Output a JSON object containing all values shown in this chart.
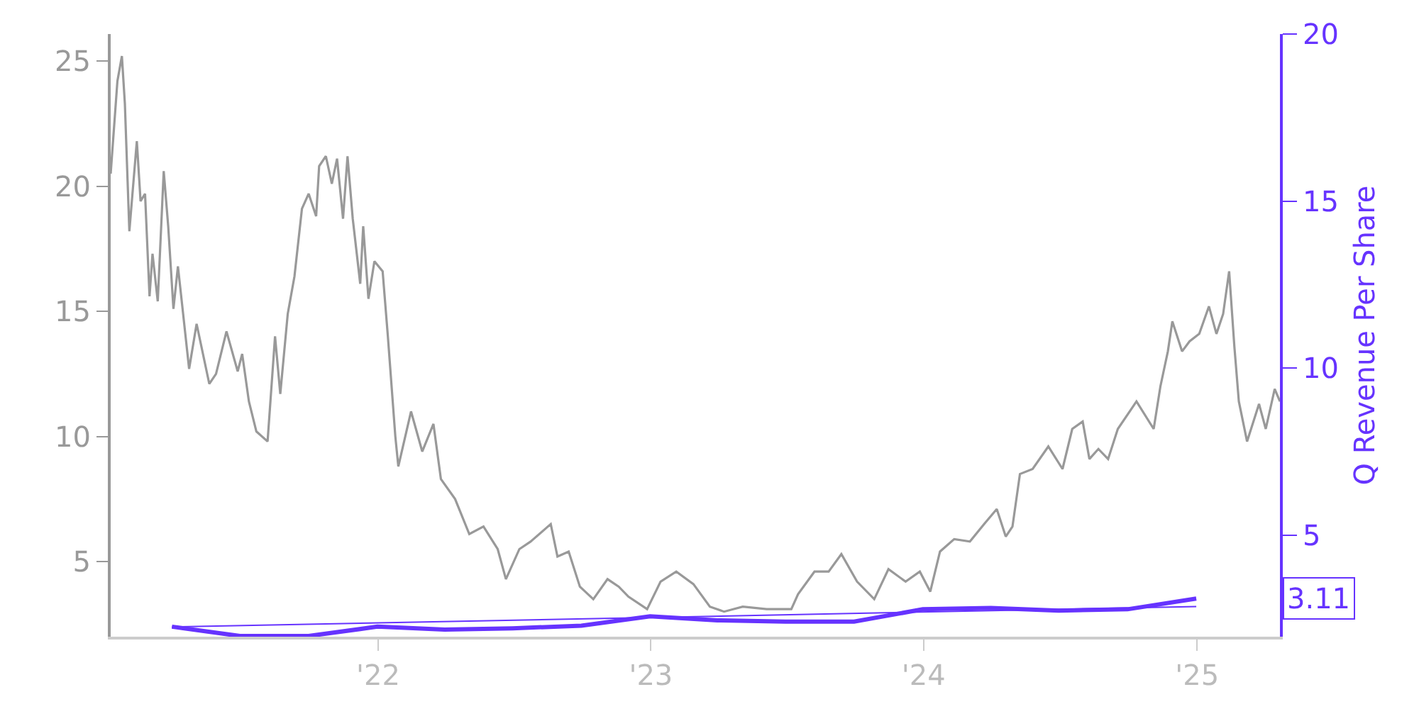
{
  "chart_data": {
    "type": "line",
    "y2label": "Q Revenue Per Share",
    "xlim": [
      "2021-01-08",
      "2025-04-22"
    ],
    "xticks": [
      {
        "value": "2022-01-01",
        "label": "'22"
      },
      {
        "value": "2023-01-01",
        "label": "'23"
      },
      {
        "value": "2024-01-01",
        "label": "'24"
      },
      {
        "value": "2025-01-01",
        "label": "'25"
      }
    ],
    "ylim": [
      2,
      26.08
    ],
    "yticks": [
      5,
      10,
      15,
      20,
      25
    ],
    "y2lim": [
      1.97,
      20
    ],
    "y2ticks": [
      5,
      10,
      15,
      20
    ],
    "marker": "none",
    "annotations": [
      "3.11"
    ],
    "series": [
      {
        "color": "#999999",
        "x": [
          "2021-01-08",
          "2021-01-17",
          "2021-01-23",
          "2021-01-27",
          "2021-02-02",
          "2021-02-12",
          "2021-02-17",
          "2021-02-23",
          "2021-03-01",
          "2021-03-05",
          "2021-03-12",
          "2021-03-20",
          "2021-03-26",
          "2021-04-02",
          "2021-04-08",
          "2021-04-23",
          "2021-05-03",
          "2021-05-20",
          "2021-05-29",
          "2021-06-12",
          "2021-06-27",
          "2021-07-03",
          "2021-07-12",
          "2021-07-22",
          "2021-08-06",
          "2021-08-16",
          "2021-08-23",
          "2021-09-02",
          "2021-09-11",
          "2021-09-21",
          "2021-09-30",
          "2021-10-10",
          "2021-10-14",
          "2021-10-23",
          "2021-10-31",
          "2021-11-07",
          "2021-11-15",
          "2021-11-21",
          "2021-11-28",
          "2021-12-08",
          "2021-12-12",
          "2021-12-19",
          "2021-12-27",
          "2022-01-07",
          "2022-01-14",
          "2022-01-24",
          "2022-01-28",
          "2022-02-14",
          "2022-03-01",
          "2022-03-16",
          "2022-03-26",
          "2022-04-14",
          "2022-05-03",
          "2022-05-22",
          "2022-06-10",
          "2022-06-21",
          "2022-07-09",
          "2022-07-24",
          "2022-08-20",
          "2022-08-29",
          "2022-09-13",
          "2022-09-28",
          "2022-10-16",
          "2022-11-04",
          "2022-11-19",
          "2022-12-02",
          "2022-12-27",
          "2023-01-14",
          "2023-02-04",
          "2023-02-27",
          "2023-03-21",
          "2023-04-09",
          "2023-05-04",
          "2023-06-05",
          "2023-07-08",
          "2023-07-17",
          "2023-08-08",
          "2023-08-27",
          "2023-09-13",
          "2023-10-04",
          "2023-10-27",
          "2023-11-15",
          "2023-12-08",
          "2023-12-27",
          "2024-01-10",
          "2024-01-23",
          "2024-02-11",
          "2024-03-03",
          "2024-03-22",
          "2024-04-08",
          "2024-04-20",
          "2024-04-29",
          "2024-05-09",
          "2024-05-26",
          "2024-06-16",
          "2024-07-05",
          "2024-07-18",
          "2024-08-01",
          "2024-08-10",
          "2024-08-22",
          "2024-09-04",
          "2024-09-17",
          "2024-10-12",
          "2024-11-04",
          "2024-11-13",
          "2024-11-23",
          "2024-11-29",
          "2024-12-12",
          "2024-12-22",
          "2025-01-04",
          "2025-01-17",
          "2025-01-27",
          "2025-02-05",
          "2025-02-13",
          "2025-02-20",
          "2025-02-26",
          "2025-03-09",
          "2025-03-25",
          "2025-04-03",
          "2025-04-15",
          "2025-04-22"
        ],
        "values": [
          20.5,
          24.2,
          25.2,
          23.3,
          18.2,
          21.8,
          19.4,
          19.7,
          15.6,
          17.3,
          15.4,
          20.6,
          18.4,
          15.1,
          16.8,
          12.7,
          14.5,
          12.1,
          12.5,
          14.2,
          12.6,
          13.3,
          11.4,
          10.2,
          9.8,
          14.0,
          11.7,
          14.9,
          16.4,
          19.1,
          19.7,
          18.8,
          20.8,
          21.2,
          20.1,
          21.1,
          18.7,
          21.2,
          18.7,
          16.1,
          18.4,
          15.5,
          17.0,
          16.6,
          14.0,
          10.0,
          8.8,
          11.0,
          9.4,
          10.5,
          8.3,
          7.5,
          6.1,
          6.4,
          5.5,
          4.3,
          5.5,
          5.8,
          6.5,
          5.2,
          5.4,
          4.0,
          3.5,
          4.3,
          4.0,
          3.6,
          3.1,
          4.2,
          4.6,
          4.1,
          3.2,
          3.0,
          3.2,
          3.1,
          3.1,
          3.7,
          4.6,
          4.6,
          5.3,
          4.2,
          3.5,
          4.7,
          4.2,
          4.6,
          3.8,
          5.4,
          5.9,
          5.8,
          6.5,
          7.1,
          6.0,
          6.4,
          8.5,
          8.7,
          9.6,
          8.7,
          10.3,
          10.6,
          9.1,
          9.5,
          9.1,
          10.3,
          11.4,
          10.3,
          12.0,
          13.4,
          14.6,
          13.4,
          13.8,
          14.1,
          15.2,
          14.1,
          14.9,
          16.6,
          13.6,
          11.4,
          9.8,
          11.3,
          10.3,
          11.9,
          11.4
        ]
      },
      {
        "color": "#6633ff",
        "axis": "y2",
        "x": [
          "2021-03-31",
          "2021-06-30",
          "2021-09-30",
          "2021-12-31",
          "2022-03-31",
          "2022-06-30",
          "2022-09-30",
          "2022-12-31",
          "2023-03-31",
          "2023-06-30",
          "2023-09-30",
          "2023-12-31",
          "2024-03-31",
          "2024-06-30",
          "2024-09-30",
          "2024-12-31"
        ],
        "values": [
          2.27,
          1.99,
          1.99,
          2.27,
          2.18,
          2.22,
          2.3,
          2.58,
          2.46,
          2.42,
          2.42,
          2.79,
          2.83,
          2.75,
          2.79,
          3.11
        ]
      },
      {
        "color": "#6633ff",
        "axis": "y2",
        "x": [
          "2021-03-31",
          "2024-12-31"
        ],
        "values": [
          2.26,
          2.87
        ]
      }
    ]
  }
}
